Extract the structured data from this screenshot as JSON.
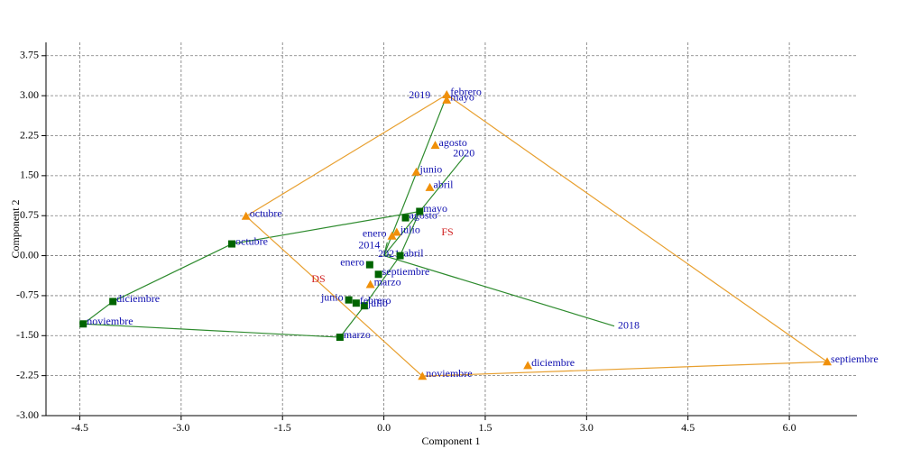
{
  "chart_data": {
    "type": "scatter",
    "x_label": "Component 1",
    "y_label": "Component 2",
    "xlim": [
      -5,
      7
    ],
    "ylim": [
      -3,
      4
    ],
    "xticks": [
      -4.5,
      {
        "value": -3,
        "label": "-3.0"
      },
      -1.5,
      {
        "value": 0,
        "label": "0.0"
      },
      1.5,
      {
        "value": 3,
        "label": "3.0"
      },
      4.5,
      {
        "value": 6,
        "label": "6.0"
      }
    ],
    "yticks": [
      3.75,
      {
        "value": 3,
        "label": "3.00"
      },
      2.25,
      {
        "value": 1.5,
        "label": "1.50"
      },
      0.75,
      {
        "value": 0,
        "label": "0.00"
      },
      -0.75,
      {
        "value": -1.5,
        "label": "-1.50"
      },
      -2.25,
      {
        "value": -3,
        "label": "-3.00"
      }
    ],
    "grid": true,
    "convex_hull": true,
    "series": [
      {
        "name": "DS",
        "color": "#006400",
        "hull_color": "#2e8b2e",
        "marker": "square",
        "labels": [
          "octubre",
          "diciembre",
          "noviembre",
          "marzo",
          "julio",
          "febrero",
          "junio",
          "septiembre",
          "enero",
          "abril",
          "agosto",
          "mayo"
        ],
        "x": [
          -2.25,
          -4.01,
          -4.45,
          -0.65,
          -0.29,
          -0.41,
          -0.52,
          -0.08,
          -0.21,
          0.24,
          0.32,
          0.53
        ],
        "values": [
          0.22,
          -0.86,
          -1.28,
          -1.53,
          -0.94,
          -0.89,
          -0.83,
          -0.35,
          -0.17,
          0.0,
          0.71,
          0.83
        ]
      },
      {
        "name": "FS",
        "color": "#f0900a",
        "hull_color": "#e8a030",
        "marker": "triangle",
        "labels": [
          "febrero",
          "mayo",
          "agosto",
          "junio",
          "abril",
          "julio",
          "enero",
          "marzo",
          "octubre",
          "noviembre",
          "diciembre",
          "septiembre"
        ],
        "x": [
          0.93,
          0.93,
          0.76,
          0.48,
          0.68,
          0.19,
          0.12,
          -0.2,
          -2.04,
          0.57,
          2.13,
          6.56
        ],
        "values": [
          3.02,
          2.92,
          2.07,
          1.57,
          1.28,
          0.44,
          0.37,
          -0.54,
          0.74,
          -2.26,
          -2.06,
          -1.99
        ]
      }
    ],
    "vectors_color": "#2e8b2e",
    "vectors": [
      {
        "label": "2018",
        "x": 3.41,
        "y": -1.32
      },
      {
        "label": "2019",
        "x": 0.93,
        "y": 3.0
      },
      {
        "label": "2020",
        "x": 1.21,
        "y": 1.89
      },
      {
        "label": "2014",
        "x": 0.05,
        "y": 0.25
      },
      {
        "label": "2021",
        "x": 0.1,
        "y": 0.02
      }
    ]
  }
}
